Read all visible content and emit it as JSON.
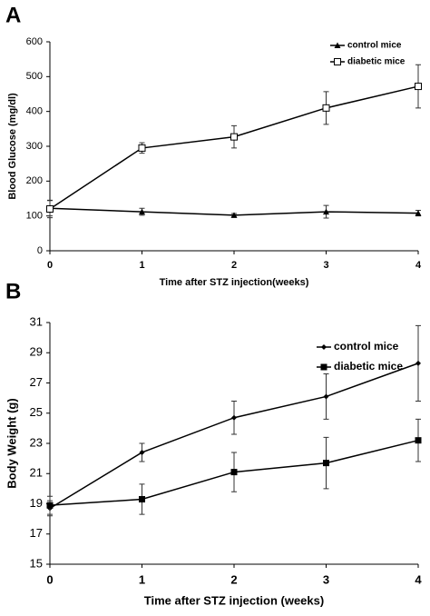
{
  "chart_data": [
    {
      "type": "line",
      "panel": "A",
      "xlabel": "Time after STZ injection(weeks)",
      "ylabel": "Blood Glucose (mg/dl)",
      "x": [
        0,
        1,
        2,
        3,
        4
      ],
      "xlim": [
        0,
        4
      ],
      "xticks": [
        0,
        1,
        2,
        3,
        4
      ],
      "ylim": [
        0,
        600
      ],
      "yticks": [
        0,
        100,
        200,
        300,
        400,
        500,
        600
      ],
      "grid": false,
      "legend": "upper right",
      "series": [
        {
          "name": "control mice",
          "color": "#000000",
          "marker": "triangle",
          "values": [
            122,
            112,
            102,
            112,
            108
          ],
          "errors": [
            22,
            10,
            5,
            18,
            8
          ]
        },
        {
          "name": "diabetic mice",
          "color": "#000000",
          "marker": "open-square",
          "values": [
            120,
            295,
            327,
            410,
            472
          ],
          "errors": [
            25,
            15,
            32,
            47,
            62
          ]
        }
      ]
    },
    {
      "type": "line",
      "panel": "B",
      "xlabel": "Time after STZ injection (weeks)",
      "ylabel": "Body Weight (g)",
      "x": [
        0,
        1,
        2,
        3,
        4
      ],
      "xlim": [
        0,
        4
      ],
      "xticks": [
        0,
        1,
        2,
        3,
        4
      ],
      "ylim": [
        15,
        31
      ],
      "yticks": [
        15,
        17,
        19,
        21,
        23,
        25,
        27,
        29,
        31
      ],
      "grid": false,
      "legend": "upper right",
      "series": [
        {
          "name": "control mice",
          "color": "#000000",
          "marker": "diamond",
          "values": [
            18.7,
            22.4,
            24.7,
            26.1,
            28.3
          ],
          "errors": [
            0.5,
            0.6,
            1.1,
            1.5,
            2.5
          ]
        },
        {
          "name": "diabetic mice",
          "color": "#000000",
          "marker": "square",
          "values": [
            18.9,
            19.3,
            21.1,
            21.7,
            23.2
          ],
          "errors": [
            0.6,
            1.0,
            1.3,
            1.7,
            1.4
          ]
        }
      ]
    }
  ]
}
